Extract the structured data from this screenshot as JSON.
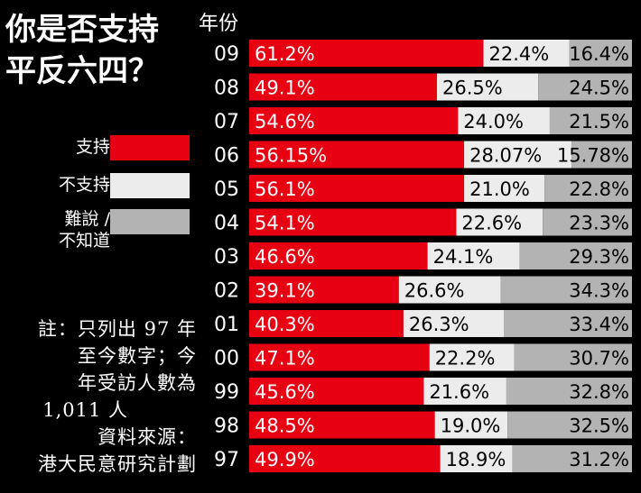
{
  "title_lines": [
    "你是否支持",
    "平反六四？"
  ],
  "colors": {
    "support": "#e60012",
    "oppose": "#ececec",
    "unsure": "#b3b3b3",
    "background": "#000000"
  },
  "legend": {
    "support": "支持",
    "oppose": "不支持",
    "unsure_line1": "難說 /",
    "unsure_line2": "不知道"
  },
  "note_lines": [
    "註：只列出 97 年",
    "至今數字；今",
    "年受訪人數為",
    "1,011 人",
    "資料來源：",
    "港大民意研究計劃"
  ],
  "chart_data": {
    "type": "bar",
    "stacked": true,
    "orientation": "horizontal",
    "category_header": "年份",
    "categories": [
      "09",
      "08",
      "07",
      "06",
      "05",
      "04",
      "03",
      "02",
      "01",
      "00",
      "99",
      "98",
      "97"
    ],
    "series": [
      {
        "name": "支持",
        "values": [
          61.2,
          49.1,
          54.6,
          56.15,
          56.1,
          54.1,
          46.6,
          39.1,
          40.3,
          47.1,
          45.6,
          48.5,
          49.9
        ],
        "labels": [
          "61.2%",
          "49.1%",
          "54.6%",
          "56.15%",
          "56.1%",
          "54.1%",
          "46.6%",
          "39.1%",
          "40.3%",
          "47.1%",
          "45.6%",
          "48.5%",
          "49.9%"
        ]
      },
      {
        "name": "不支持",
        "values": [
          22.4,
          26.5,
          24.0,
          28.07,
          21.0,
          22.6,
          24.1,
          26.6,
          26.3,
          22.2,
          21.6,
          19.0,
          18.9
        ],
        "labels": [
          "22.4%",
          "26.5%",
          "24.0%",
          "28.07%",
          "21.0%",
          "22.6%",
          "24.1%",
          "26.6%",
          "26.3%",
          "22.2%",
          "21.6%",
          "19.0%",
          "18.9%"
        ]
      },
      {
        "name": "難說 / 不知道",
        "values": [
          16.4,
          24.5,
          21.5,
          15.78,
          22.8,
          23.3,
          29.3,
          34.3,
          33.4,
          30.7,
          32.8,
          32.5,
          31.2
        ],
        "labels": [
          "16.4%",
          "24.5%",
          "21.5%",
          "15.78%",
          "22.8%",
          "23.3%",
          "29.3%",
          "34.3%",
          "33.4%",
          "30.7%",
          "32.8%",
          "32.5%",
          "31.2%"
        ]
      }
    ],
    "xlim": [
      0,
      100
    ],
    "legend_position": "left"
  }
}
